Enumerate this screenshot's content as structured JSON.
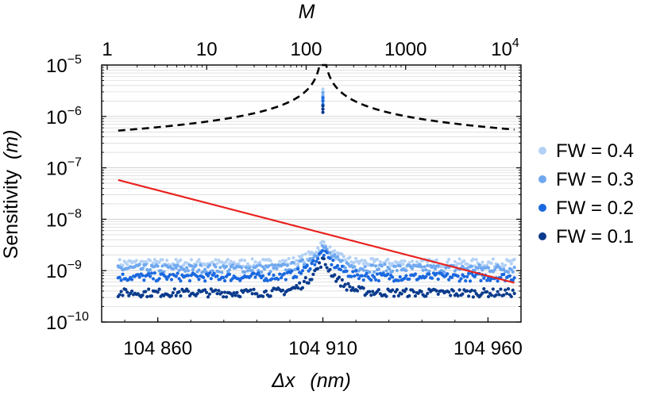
{
  "chart_data": {
    "type": "scatter",
    "title": "",
    "xlabel": "Δx",
    "xlabel_unit": "(nm)",
    "ylabel": "Sensitivity",
    "ylabel_unit": "(m)",
    "top_axis_label": "M",
    "x_range": [
      104843,
      104970
    ],
    "y_range_log10": [
      -10,
      -5
    ],
    "y_scale": "log",
    "top_axis_scale": "log",
    "grid": "horizontal minor lines",
    "legend_position": "right",
    "x_ticks": [
      {
        "value": 104860,
        "label": "104 860"
      },
      {
        "value": 104910,
        "label": "104 910"
      },
      {
        "value": 104960,
        "label": "104 960"
      }
    ],
    "y_ticks": [
      {
        "exp": -10,
        "base": "10",
        "sup": "−10"
      },
      {
        "exp": -9,
        "base": "10",
        "sup": "−9"
      },
      {
        "exp": -8,
        "base": "10",
        "sup": "−8"
      },
      {
        "exp": -7,
        "base": "10",
        "sup": "−7"
      },
      {
        "exp": -6,
        "base": "10",
        "sup": "−6"
      },
      {
        "exp": -5,
        "base": "10",
        "sup": "−5"
      }
    ],
    "top_ticks": [
      {
        "value": 1,
        "label": "1"
      },
      {
        "value": 10,
        "label": "10"
      },
      {
        "value": 100,
        "label": "100"
      },
      {
        "value": 1000,
        "label": "1000"
      },
      {
        "value": 10000,
        "base": "10",
        "sup": "4"
      }
    ],
    "series": [
      {
        "name": "FW = 0.4",
        "color": "#b3d1f5",
        "baseline": 1.4e-09,
        "peak": 3.5e-09,
        "outlier_range": [
          2.6e-06,
          3.4e-06
        ]
      },
      {
        "name": "FW = 0.3",
        "color": "#6fa8ef",
        "baseline": 1.1e-09,
        "peak": 3e-09,
        "outlier_range": [
          2.1e-06,
          2.9e-06
        ]
      },
      {
        "name": "FW = 0.2",
        "color": "#1a68e0",
        "baseline": 7.5e-10,
        "peak": 2.4e-09,
        "outlier_range": [
          1.7e-06,
          2.3e-06
        ]
      },
      {
        "name": "FW = 0.1",
        "color": "#0b3b8c",
        "baseline": 3.7e-10,
        "peak": 1.6e-09,
        "outlier_range": [
          1.2e-06,
          1.6e-06
        ]
      }
    ],
    "reference_lines": [
      {
        "style": "dashed",
        "color": "#000000",
        "description": "cusp",
        "center_x": 104910,
        "endpoint_value": 5.3e-07,
        "peak_value": 1e-05
      },
      {
        "style": "solid",
        "color": "#e8231f",
        "start": [
          104848,
          5.8e-08
        ],
        "end": [
          104968,
          5.8e-10
        ]
      }
    ]
  }
}
